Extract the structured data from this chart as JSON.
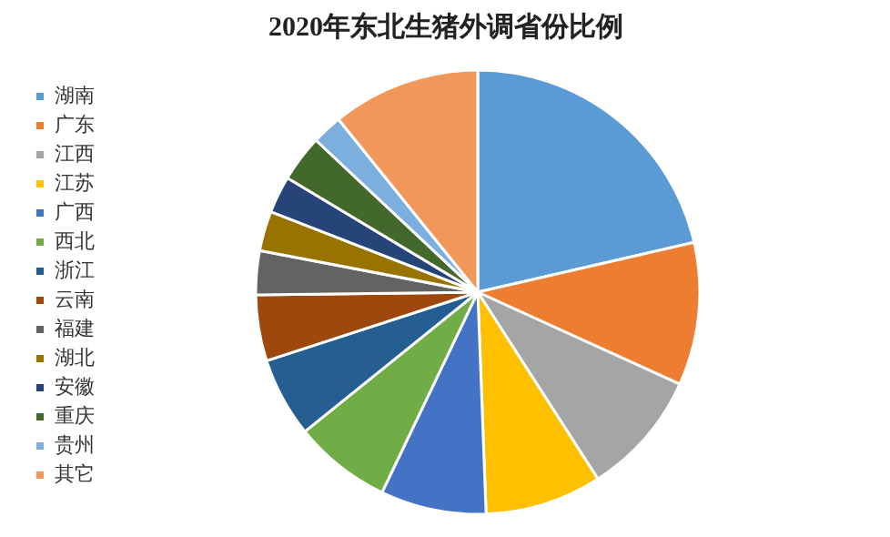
{
  "chart_data": {
    "type": "pie",
    "title": "2020年东北生猪外调省份比例",
    "categories": [
      "湖南",
      "广东",
      "江西",
      "江苏",
      "广西",
      "西北",
      "浙江",
      "云南",
      "福建",
      "湖北",
      "安徽",
      "重庆",
      "贵州",
      "其它"
    ],
    "values": [
      21.4,
      10.4,
      9.1,
      8.5,
      7.7,
      7.1,
      5.8,
      4.8,
      3.2,
      2.9,
      2.7,
      3.4,
      2.2,
      10.8
    ],
    "colors": [
      "#5b9bd5",
      "#ed7d31",
      "#a5a5a5",
      "#ffc000",
      "#4472c4",
      "#70ad47",
      "#255e91",
      "#9e480e",
      "#636363",
      "#997300",
      "#264478",
      "#43682b",
      "#7cafdd",
      "#f1975a"
    ],
    "legend": "left"
  }
}
